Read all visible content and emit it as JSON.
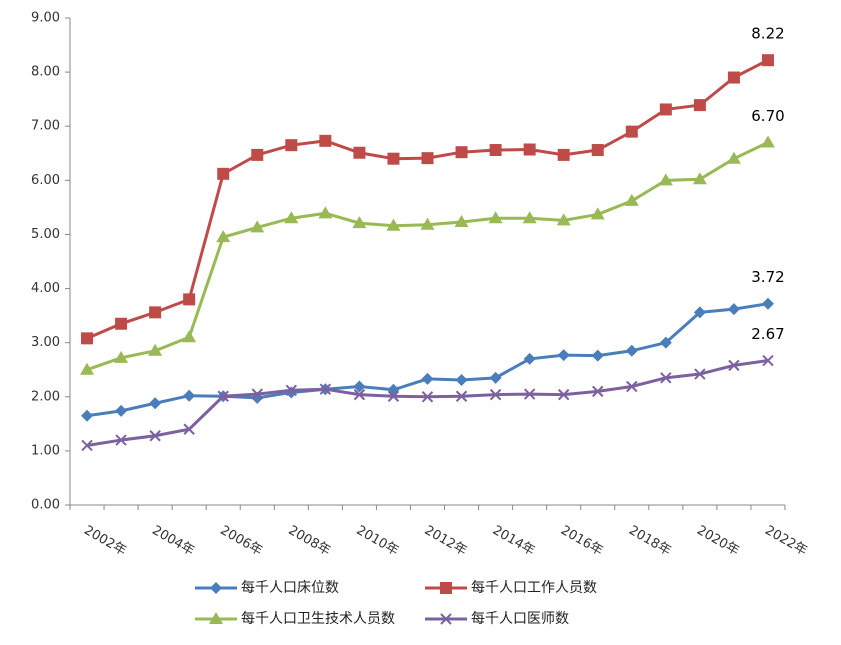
{
  "chart_data": {
    "type": "line",
    "categories": [
      "2002年",
      null,
      "2004年",
      null,
      "2006年",
      null,
      "2008年",
      null,
      "2010年",
      null,
      "2012年",
      null,
      "2014年",
      null,
      "2016年",
      null,
      "2018年",
      null,
      "2020年",
      null,
      "2022年"
    ],
    "ylim": [
      0,
      9
    ],
    "yticks": [
      {
        "value": 0,
        "label": "0.00"
      },
      {
        "value": 1,
        "label": "1.00"
      },
      {
        "value": 2,
        "label": "2.00"
      },
      {
        "value": 3,
        "label": "3.00"
      },
      {
        "value": 4,
        "label": "4.00"
      },
      {
        "value": 5,
        "label": "5.00"
      },
      {
        "value": 6,
        "label": "6.00"
      },
      {
        "value": 7,
        "label": "7.00"
      },
      {
        "value": 8,
        "label": "8.00"
      },
      {
        "value": 9,
        "label": "9.00"
      }
    ],
    "grid": false,
    "series": [
      {
        "name": "每千人口床位数",
        "color": "#4a7ebb",
        "marker": "diamond",
        "values": [
          1.65,
          1.74,
          1.88,
          2.02,
          2.01,
          1.98,
          2.08,
          2.14,
          2.19,
          2.13,
          2.33,
          2.31,
          2.35,
          2.7,
          2.77,
          2.76,
          2.85,
          3.0,
          3.56,
          3.62,
          3.72
        ],
        "value_labels": [
          null,
          null,
          null,
          null,
          null,
          null,
          null,
          null,
          null,
          null,
          null,
          null,
          null,
          null,
          null,
          null,
          null,
          null,
          null,
          null,
          "3.72"
        ]
      },
      {
        "name": "每千人口工作人员数",
        "color": "#be4b48",
        "marker": "square",
        "values": [
          3.08,
          3.35,
          3.56,
          3.8,
          6.12,
          6.47,
          6.65,
          6.73,
          6.51,
          6.4,
          6.41,
          6.52,
          6.56,
          6.57,
          6.47,
          6.56,
          6.9,
          7.31,
          7.39,
          7.9,
          8.22
        ],
        "value_labels": [
          null,
          null,
          null,
          null,
          null,
          null,
          null,
          null,
          null,
          null,
          null,
          null,
          null,
          null,
          null,
          null,
          null,
          null,
          null,
          null,
          "8.22"
        ]
      },
      {
        "name": "每千人口卫生技术人员数",
        "color": "#98b954",
        "marker": "triangle",
        "values": [
          2.5,
          2.72,
          2.85,
          3.1,
          4.95,
          5.13,
          5.3,
          5.39,
          5.21,
          5.16,
          5.18,
          5.23,
          5.3,
          5.3,
          5.26,
          5.37,
          5.62,
          6.0,
          6.02,
          6.4,
          6.7
        ],
        "value_labels": [
          null,
          null,
          null,
          null,
          null,
          null,
          null,
          null,
          null,
          null,
          null,
          null,
          null,
          null,
          null,
          null,
          null,
          null,
          null,
          null,
          "6.70"
        ]
      },
      {
        "name": "每千人口医师数",
        "color": "#7d60a0",
        "marker": "x",
        "values": [
          1.1,
          1.2,
          1.28,
          1.4,
          2.01,
          2.05,
          2.12,
          2.14,
          2.04,
          2.01,
          2.0,
          2.01,
          2.04,
          2.05,
          2.04,
          2.1,
          2.19,
          2.35,
          2.42,
          2.58,
          2.67
        ],
        "value_labels": [
          null,
          null,
          null,
          null,
          null,
          null,
          null,
          null,
          null,
          null,
          null,
          null,
          null,
          null,
          null,
          null,
          null,
          null,
          null,
          null,
          "2.67"
        ]
      }
    ]
  }
}
